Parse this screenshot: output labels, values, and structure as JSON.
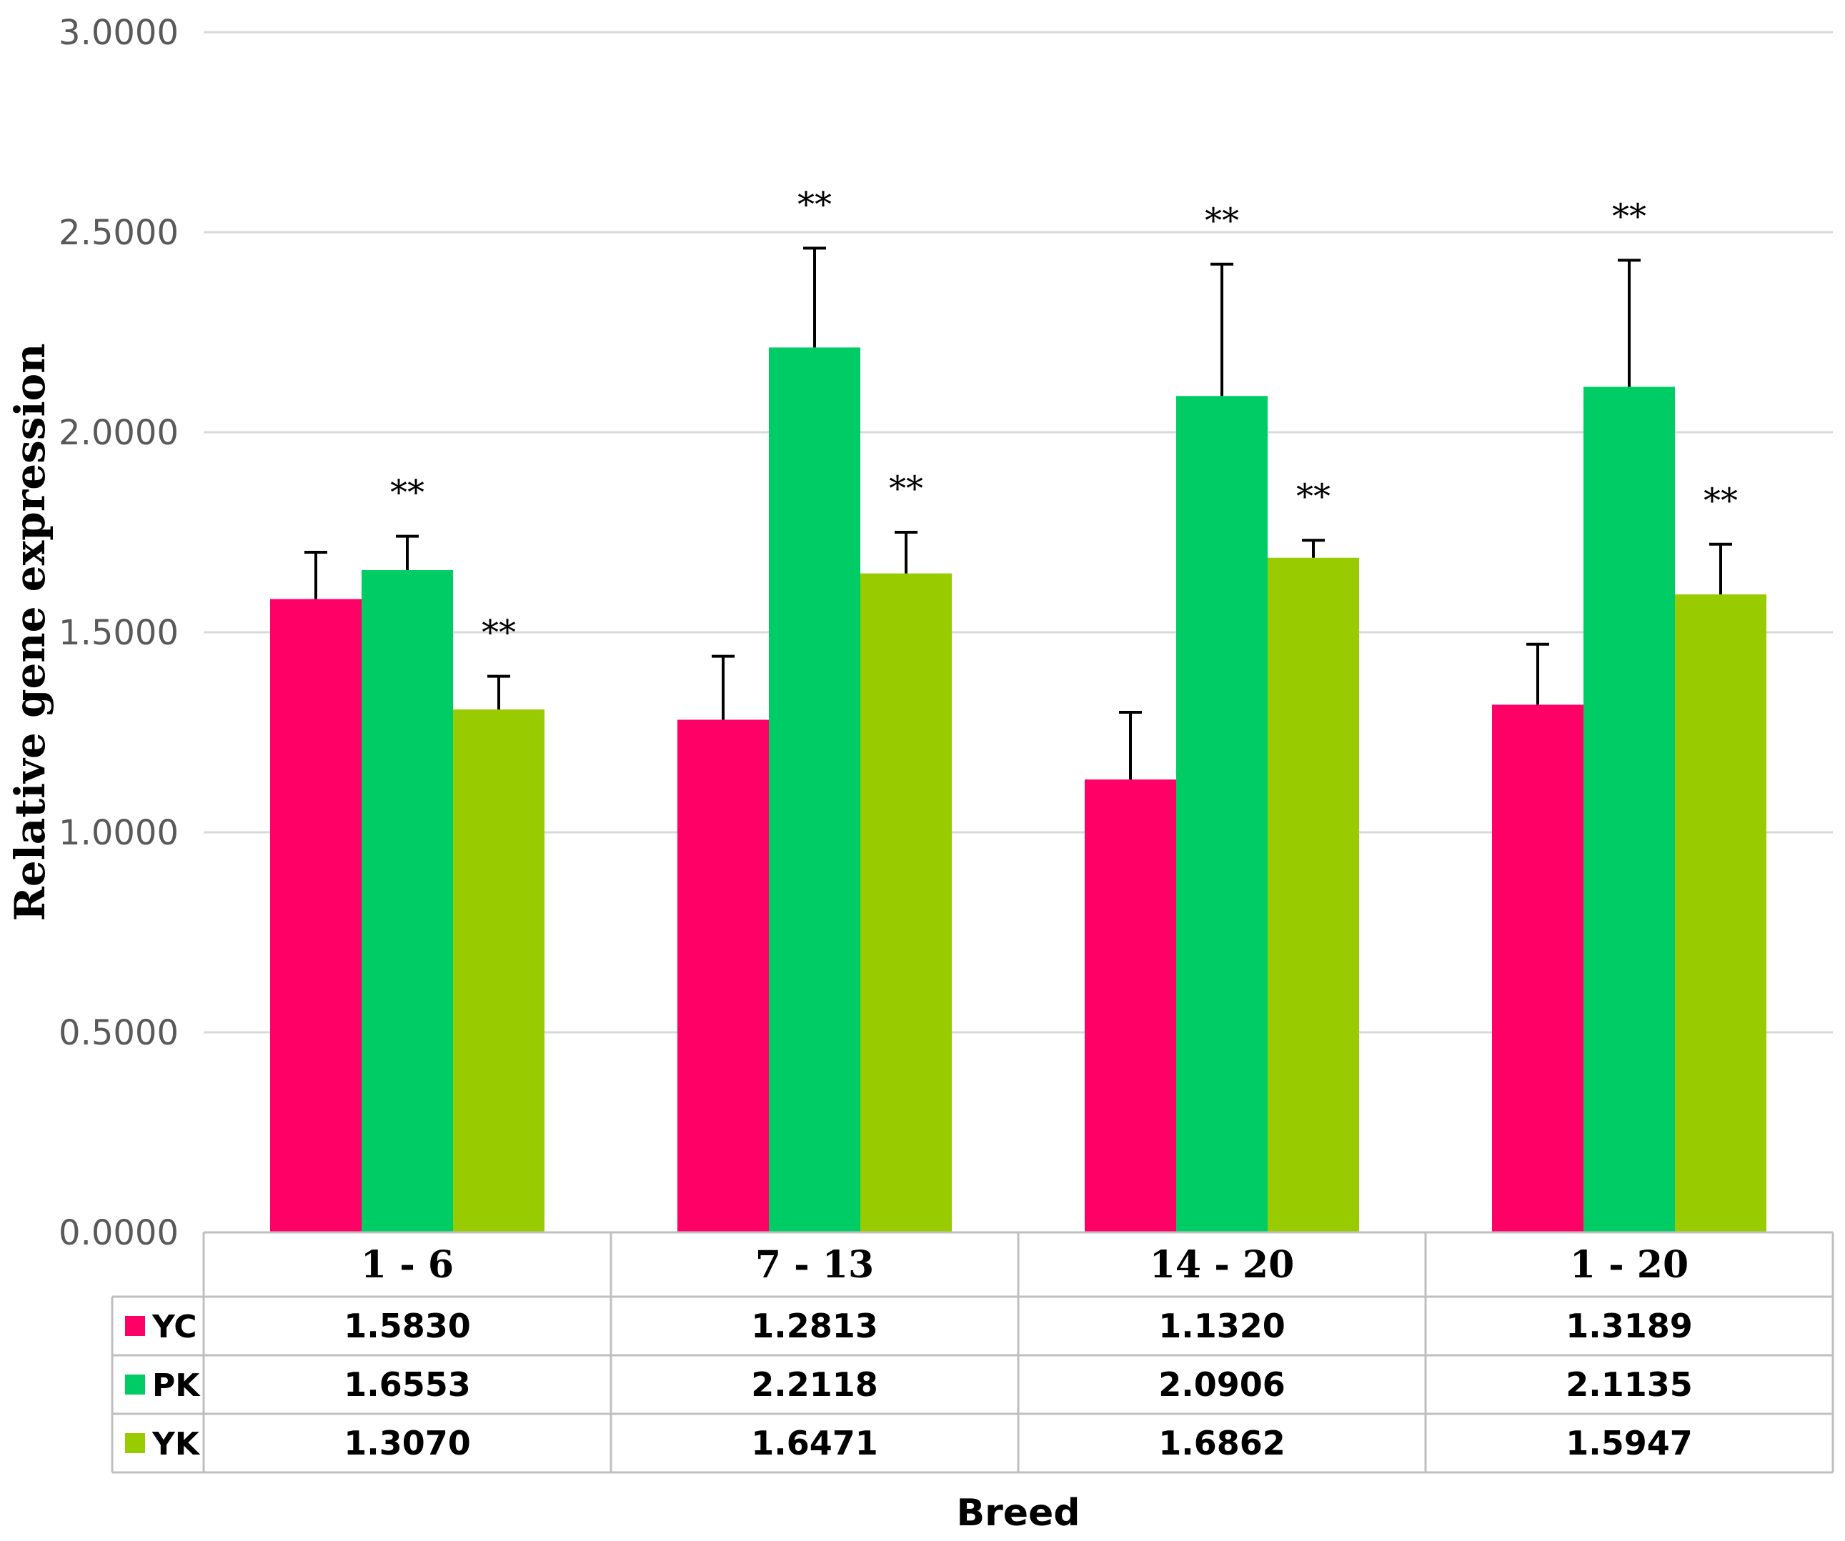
{
  "chart_data": {
    "type": "bar",
    "title": "",
    "xlabel": "Breed",
    "ylabel": "Relative gene expression",
    "ylim": [
      0,
      3
    ],
    "y_ticks": [
      {
        "value": 0,
        "label": "0.0000"
      },
      {
        "value": 0.5,
        "label": "0.5000"
      },
      {
        "value": 1,
        "label": "1.0000"
      },
      {
        "value": 1.5,
        "label": "1.5000"
      },
      {
        "value": 2,
        "label": "2.0000"
      },
      {
        "value": 2.5,
        "label": "2.5000"
      },
      {
        "value": 3,
        "label": "3.0000"
      }
    ],
    "grid": true,
    "categories": [
      "1 - 6",
      "7 - 13",
      "14 - 20",
      "1 - 20"
    ],
    "series": [
      {
        "name": "YC",
        "color": "#ff0066",
        "values": [
          1.583,
          1.2813,
          1.132,
          1.3189
        ],
        "labels": [
          "1.5830",
          "1.2813",
          "1.1320",
          "1.3189"
        ],
        "error_upper": [
          1.7,
          1.44,
          1.3,
          1.47
        ],
        "significance": [
          "",
          "",
          "",
          ""
        ]
      },
      {
        "name": "PK",
        "color": "#00cc66",
        "values": [
          1.6553,
          2.2118,
          2.0906,
          2.1135
        ],
        "labels": [
          "1.6553",
          "2.2118",
          "2.0906",
          "2.1135"
        ],
        "error_upper": [
          1.74,
          2.46,
          2.42,
          2.43
        ],
        "significance": [
          "**",
          "**",
          "**",
          "**"
        ]
      },
      {
        "name": "YK",
        "color": "#99cc00",
        "values": [
          1.307,
          1.6471,
          1.6862,
          1.5947
        ],
        "labels": [
          "1.3070",
          "1.6471",
          "1.6862",
          "1.5947"
        ],
        "error_upper": [
          1.39,
          1.75,
          1.73,
          1.72
        ],
        "significance": [
          "**",
          "**",
          "**",
          "**"
        ]
      }
    ],
    "data_table": true
  }
}
